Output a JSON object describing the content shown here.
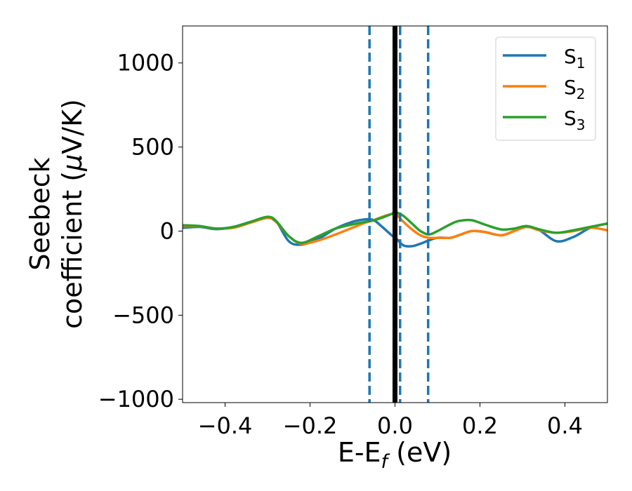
{
  "chart_data": {
    "type": "line",
    "title": "",
    "xlabel": {
      "base": "E-E",
      "sub": "f",
      "tail": " (eV)"
    },
    "ylabel": {
      "line1": "Seebeck",
      "line2_pre": "coefficient  (",
      "mu": "μ",
      "line2_post": "V/K)"
    },
    "xlim": [
      -0.5,
      0.5
    ],
    "ylim": [
      -1020,
      1220
    ],
    "xticks": [
      -0.4,
      -0.2,
      0.0,
      0.2,
      0.4
    ],
    "xtick_labels": [
      "−0.4",
      "−0.2",
      "0.0",
      "0.2",
      "0.4"
    ],
    "yticks": [
      -1000,
      -500,
      0,
      500,
      1000
    ],
    "ytick_labels": [
      "−1000",
      "−500",
      "0",
      "500",
      "1000"
    ],
    "grid": false,
    "legend_position": "top-right",
    "series": [
      {
        "name": "S",
        "name_sub": "1",
        "color": "#1f77b4",
        "x": [
          -0.5,
          -0.46,
          -0.42,
          -0.38,
          -0.34,
          -0.3,
          -0.28,
          -0.25,
          -0.22,
          -0.18,
          -0.14,
          -0.1,
          -0.07,
          -0.05,
          -0.03,
          -0.01,
          0.0,
          0.005,
          0.02,
          0.04,
          0.06,
          0.08,
          0.1,
          0.13,
          0.15,
          0.18,
          0.21,
          0.25,
          0.28,
          0.31,
          0.34,
          0.38,
          0.42,
          0.46,
          0.5
        ],
        "y": [
          20,
          25,
          12,
          25,
          55,
          80,
          60,
          -60,
          -80,
          -45,
          15,
          55,
          70,
          65,
          25,
          -20,
          -40,
          -50,
          -85,
          -90,
          -75,
          -55,
          -40,
          -40,
          -25,
          0,
          -5,
          -25,
          0,
          25,
          5,
          -60,
          -35,
          20,
          45
        ]
      },
      {
        "name": "S",
        "name_sub": "2",
        "color": "#ff7f0e",
        "x": [
          -0.5,
          -0.46,
          -0.42,
          -0.38,
          -0.34,
          -0.3,
          -0.28,
          -0.25,
          -0.22,
          -0.18,
          -0.14,
          -0.1,
          -0.07,
          -0.05,
          -0.03,
          -0.01,
          0.0,
          0.005,
          0.02,
          0.04,
          0.06,
          0.08,
          0.1,
          0.13,
          0.15,
          0.18,
          0.21,
          0.25,
          0.28,
          0.31,
          0.34,
          0.38,
          0.42,
          0.46,
          0.5
        ],
        "y": [
          30,
          28,
          15,
          20,
          50,
          78,
          55,
          -30,
          -75,
          -55,
          -20,
          20,
          50,
          65,
          85,
          100,
          105,
          95,
          55,
          10,
          -25,
          -40,
          -40,
          -40,
          -25,
          0,
          -5,
          -25,
          0,
          25,
          5,
          -10,
          0,
          20,
          5
        ]
      },
      {
        "name": "S",
        "name_sub": "3",
        "color": "#2ca02c",
        "x": [
          -0.5,
          -0.46,
          -0.42,
          -0.38,
          -0.34,
          -0.3,
          -0.28,
          -0.25,
          -0.22,
          -0.18,
          -0.14,
          -0.1,
          -0.07,
          -0.05,
          -0.03,
          -0.01,
          0.0,
          0.005,
          0.02,
          0.04,
          0.06,
          0.08,
          0.1,
          0.13,
          0.15,
          0.18,
          0.21,
          0.25,
          0.28,
          0.31,
          0.34,
          0.38,
          0.42,
          0.46,
          0.5
        ],
        "y": [
          35,
          30,
          15,
          25,
          55,
          85,
          60,
          -30,
          -70,
          -30,
          15,
          40,
          55,
          65,
          80,
          100,
          110,
          110,
          90,
          45,
          0,
          -20,
          0,
          40,
          60,
          65,
          40,
          10,
          15,
          30,
          10,
          -10,
          5,
          25,
          45
        ]
      }
    ],
    "vlines": [
      {
        "x": 0.0,
        "style": "solid",
        "color": "#000000"
      },
      {
        "x": -0.06,
        "style": "dashed",
        "color": "#1f77b4"
      },
      {
        "x": 0.012,
        "style": "dashed",
        "color": "#1f77b4"
      },
      {
        "x": 0.078,
        "style": "dashed",
        "color": "#1f77b4"
      }
    ]
  }
}
